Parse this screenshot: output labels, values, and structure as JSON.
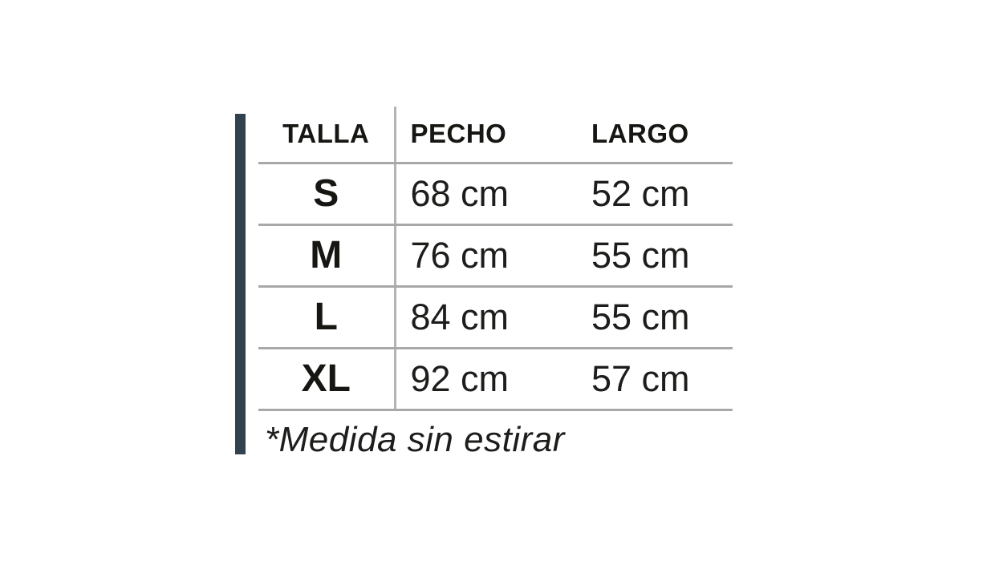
{
  "chart_data": {
    "type": "table",
    "title": "",
    "columns": [
      "TALLA",
      "PECHO",
      "LARGO"
    ],
    "rows": [
      [
        "S",
        "68 cm",
        "52 cm"
      ],
      [
        "M",
        "76 cm",
        "55 cm"
      ],
      [
        "L",
        "84 cm",
        "55 cm"
      ],
      [
        "XL",
        "92 cm",
        "57 cm"
      ]
    ],
    "footnote": "*Medida sin estirar"
  },
  "table": {
    "headers": {
      "talla": "TALLA",
      "pecho": "PECHO",
      "largo": "LARGO"
    },
    "rows": [
      {
        "size": "S",
        "pecho": "68 cm",
        "largo": "52 cm"
      },
      {
        "size": "M",
        "pecho": "76 cm",
        "largo": "55 cm"
      },
      {
        "size": "L",
        "pecho": "84 cm",
        "largo": "55 cm"
      },
      {
        "size": "XL",
        "pecho": "92 cm",
        "largo": "57 cm"
      }
    ]
  },
  "note": "*Medida sin estirar",
  "colors": {
    "accent_bar": "#31424e",
    "grid_line": "#a8a8a8",
    "text": "#1d1d1b"
  }
}
